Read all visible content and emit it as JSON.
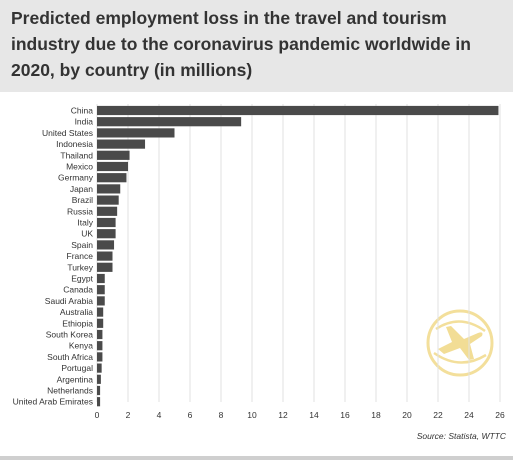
{
  "title": "Predicted employment loss in the travel and tourism industry due to the coronavirus pandemic worldwide in 2020, by country (in millions)",
  "source": "Source: Statista, WTTC",
  "icon": "airplane-globe-watermark-icon",
  "colors": {
    "bar": "#4a4a4a",
    "header_bg": "#e7e7e7",
    "grid": "#e2e2e2",
    "watermark": "#f1d98a",
    "text": "#333333"
  },
  "chart_data": {
    "type": "bar",
    "orientation": "horizontal",
    "title": "Predicted employment loss in the travel and tourism industry due to the coronavirus pandemic worldwide in 2020, by country (in millions)",
    "xlabel": "",
    "ylabel": "",
    "xlim": [
      0,
      26
    ],
    "xticks": [
      0,
      2,
      4,
      6,
      8,
      10,
      12,
      14,
      16,
      18,
      20,
      22,
      24,
      26
    ],
    "grid": true,
    "categories": [
      "China",
      "India",
      "United States",
      "Indonesia",
      "Thailand",
      "Mexico",
      "Germany",
      "Japan",
      "Brazil",
      "Russia",
      "Italy",
      "UK",
      "Spain",
      "France",
      "Turkey",
      "Egypt",
      "Canada",
      "Saudi Arabia",
      "Australia",
      "Ethiopia",
      "South Korea",
      "Kenya",
      "South Africa",
      "Portugal",
      "Argentina",
      "Netherlands",
      "United Arab Emirates"
    ],
    "values": [
      25.9,
      9.3,
      5.0,
      3.1,
      2.1,
      2.0,
      1.9,
      1.5,
      1.4,
      1.3,
      1.2,
      1.2,
      1.1,
      1.0,
      1.0,
      0.5,
      0.5,
      0.5,
      0.4,
      0.4,
      0.35,
      0.35,
      0.35,
      0.3,
      0.25,
      0.2,
      0.2
    ]
  }
}
